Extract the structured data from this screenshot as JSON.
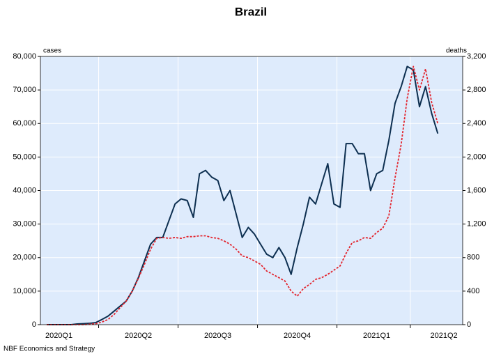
{
  "chart_data": {
    "type": "line",
    "title": "Brazil",
    "y_label": "cases",
    "y2_label": "deaths",
    "source": "NBF Economics and Strategy",
    "categories": [
      null,
      null,
      "2020Q1",
      null,
      null,
      null,
      null,
      null,
      null,
      null,
      null,
      null,
      null,
      null,
      null,
      "2020Q2",
      null,
      null,
      null,
      null,
      null,
      null,
      null,
      null,
      null,
      null,
      null,
      null,
      "2020Q3",
      null,
      null,
      null,
      null,
      null,
      null,
      null,
      null,
      null,
      null,
      null,
      null,
      "2020Q4",
      null,
      null,
      null,
      null,
      null,
      null,
      null,
      null,
      null,
      null,
      null,
      null,
      "2021Q1",
      null,
      null,
      null,
      null,
      null,
      null,
      null,
      null,
      null,
      null,
      "2021Q2"
    ],
    "series": [
      {
        "name": "cases",
        "color": "#0d2f50",
        "axis": "y",
        "values": [
          0,
          0,
          0,
          0,
          0,
          200,
          300,
          400,
          600,
          1500,
          2500,
          4000,
          5500,
          7000,
          10000,
          14000,
          19000,
          24000,
          26000,
          26000,
          31000,
          36000,
          37500,
          37000,
          32000,
          45000,
          46000,
          44000,
          43000,
          37000,
          40000,
          33000,
          26000,
          29000,
          27000,
          24000,
          21000,
          20000,
          23000,
          20000,
          15000,
          23000,
          30000,
          38000,
          36000,
          42000,
          48000,
          36000,
          35000,
          54000,
          54000,
          51000,
          51000,
          40000,
          45000,
          46000,
          55000,
          66000,
          71000,
          77000,
          76000,
          65000,
          71000,
          63000,
          57000,
          null
        ]
      },
      {
        "name": "deaths",
        "color": "#e3232c",
        "axis": "y2",
        "values": [
          0,
          0,
          0,
          0,
          0,
          0,
          0,
          5,
          10,
          30,
          60,
          120,
          200,
          280,
          400,
          550,
          720,
          900,
          1030,
          1040,
          1030,
          1040,
          1030,
          1050,
          1050,
          1060,
          1060,
          1040,
          1030,
          1000,
          960,
          900,
          820,
          800,
          760,
          720,
          640,
          600,
          560,
          520,
          400,
          340,
          430,
          480,
          540,
          560,
          600,
          650,
          700,
          850,
          980,
          1000,
          1040,
          1030,
          1100,
          1150,
          1300,
          1750,
          2150,
          2700,
          3080,
          2800,
          3050,
          2650,
          2400,
          null
        ]
      }
    ],
    "ylim": [
      0,
      80000
    ],
    "yticks": [
      0,
      {
        "value": 10000,
        "label": "10,000"
      },
      {
        "value": 20000,
        "label": "20,000"
      },
      {
        "value": 30000,
        "label": "30,000"
      },
      {
        "value": 40000,
        "label": "40,000"
      },
      {
        "value": 50000,
        "label": "50,000"
      },
      {
        "value": 60000,
        "label": "60,000"
      },
      {
        "value": 70000,
        "label": "70,000"
      },
      {
        "value": 80000,
        "label": "80,000"
      }
    ],
    "y2lim": [
      0,
      3200
    ],
    "y2ticks": [
      0,
      400,
      800,
      {
        "value": 1200,
        "label": "1,200"
      },
      {
        "value": 1600,
        "label": "1,600"
      },
      {
        "value": 2000,
        "label": "2,000"
      },
      {
        "value": 2400,
        "label": "2,400"
      },
      {
        "value": 2800,
        "label": "2,800"
      },
      {
        "value": 3200,
        "label": "3,200"
      }
    ],
    "grid": true
  }
}
